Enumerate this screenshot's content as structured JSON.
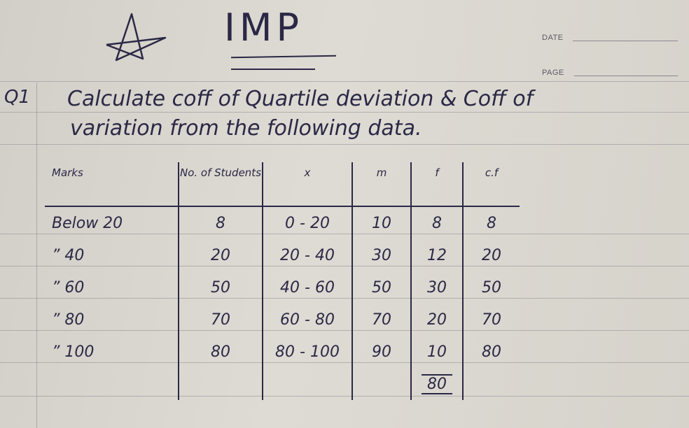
{
  "header": {
    "title": "IMP",
    "date_label": "DATE",
    "page_label": "PAGE"
  },
  "question": {
    "number": "Q1",
    "line1": "Calculate coff of Quartile deviation & Coff of",
    "line2": "variation from the following data."
  },
  "table": {
    "headers": [
      "Marks",
      "No. of Students",
      "x",
      "m",
      "f",
      "c.f"
    ],
    "rows": [
      [
        "Below 20",
        "8",
        "0 - 20",
        "10",
        "8",
        "8"
      ],
      [
        "” 40",
        "20",
        "20 - 40",
        "30",
        "12",
        "20"
      ],
      [
        "” 60",
        "50",
        "40 - 60",
        "50",
        "30",
        "50"
      ],
      [
        "” 80",
        "70",
        "60 - 80",
        "70",
        "20",
        "70"
      ],
      [
        "” 100",
        "80",
        "80 - 100",
        "90",
        "10",
        "80"
      ]
    ],
    "total": "80"
  },
  "colors": {
    "ink": "#2b2846",
    "paper": "#d9d6cf",
    "rule": "#8f8c96"
  }
}
